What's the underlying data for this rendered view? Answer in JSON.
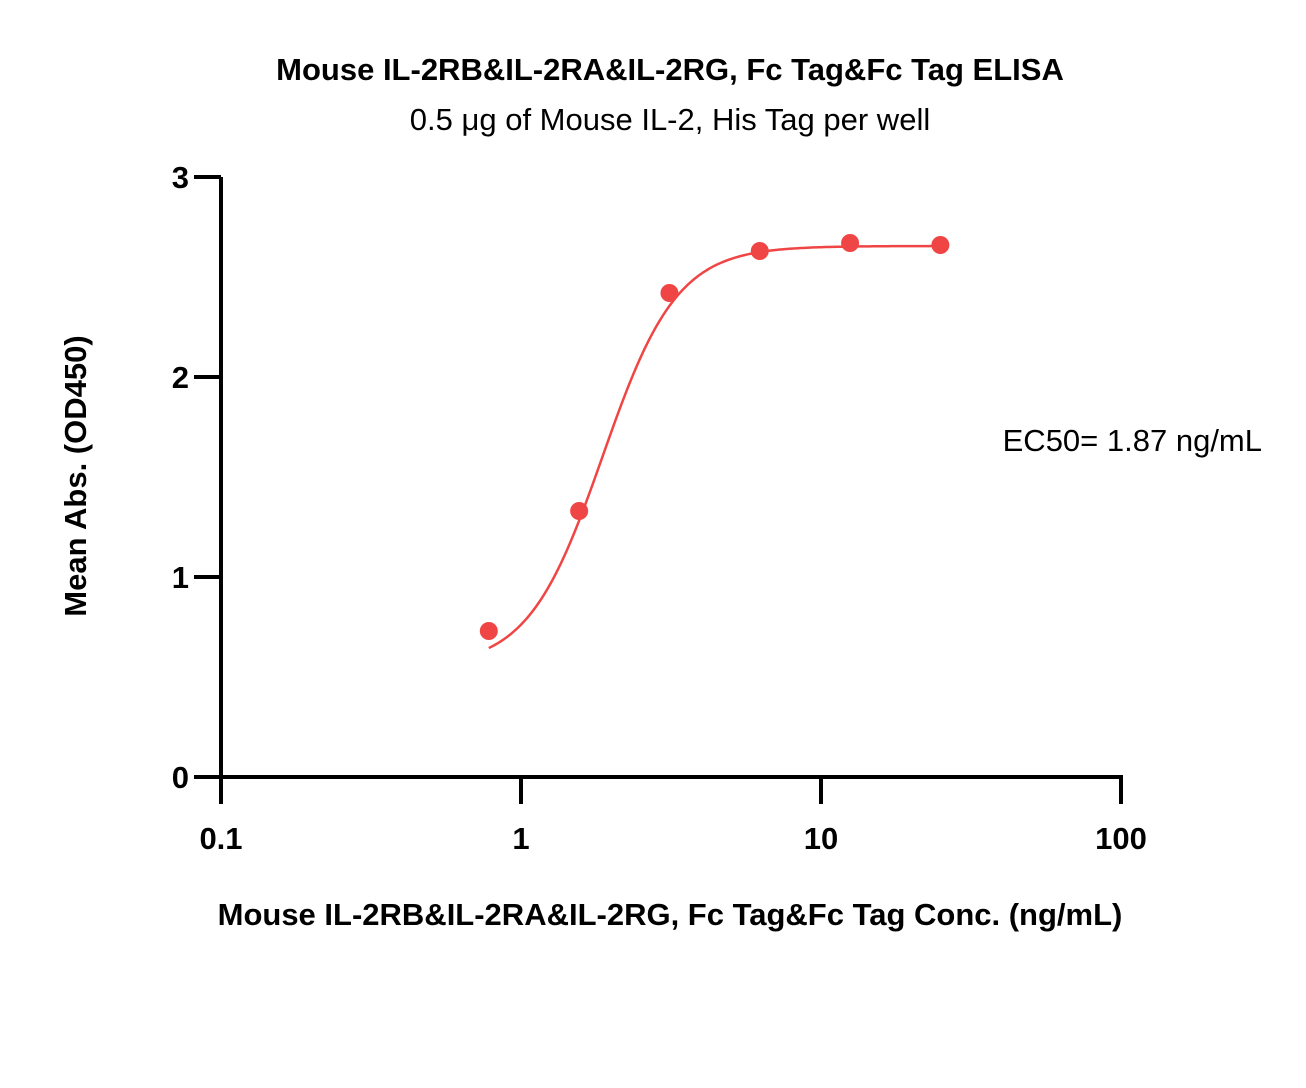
{
  "chart_data": {
    "type": "scatter",
    "title": "Mouse IL-2RB&IL-2RA&IL-2RG, Fc Tag&Fc Tag ELISA",
    "subtitle": "0.5 μg of Mouse IL-2, His Tag per well",
    "xlabel": "Mouse IL-2RB&IL-2RA&IL-2RG, Fc Tag&Fc Tag Conc. (ng/mL)",
    "ylabel": "Mean Abs. (OD450)",
    "x_scale": "log",
    "xlim": [
      0.1,
      100
    ],
    "ylim": [
      0,
      3
    ],
    "x_ticks": [
      0.1,
      1,
      10,
      100
    ],
    "x_tick_labels": [
      "0.1",
      "1",
      "10",
      "100"
    ],
    "y_ticks": [
      0,
      1,
      2,
      3
    ],
    "y_tick_labels": [
      "0",
      "1",
      "2",
      "3"
    ],
    "grid": false,
    "series": [
      {
        "color": "#f04545",
        "x": [
          0.781,
          1.5625,
          3.125,
          6.25,
          12.5,
          25
        ],
        "y": [
          0.73,
          1.33,
          2.42,
          2.63,
          2.67,
          2.66
        ],
        "fit": {
          "model": "4PL",
          "bottom": 0.55,
          "top": 2.655,
          "ec50": 1.87,
          "hill": 3.5
        }
      }
    ],
    "annotations": [
      {
        "text": "EC50= 1.87 ng/mL"
      }
    ]
  }
}
